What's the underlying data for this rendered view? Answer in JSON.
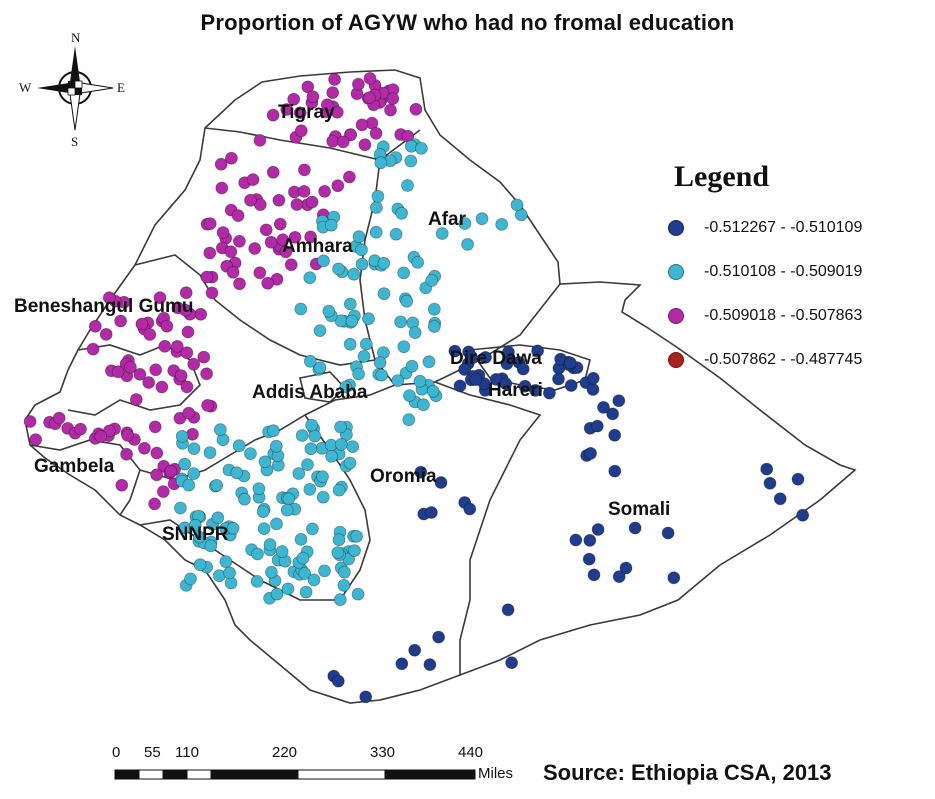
{
  "title": "Proportion of AGYW who had no fromal education",
  "legend": {
    "title": "Legend",
    "classes": [
      {
        "label": "-0.512267 - -0.510109",
        "color": "#1f3d8c"
      },
      {
        "label": "-0.510108 - -0.509019",
        "color": "#3eb6d1"
      },
      {
        "label": "-0.509018 - -0.507863",
        "color": "#b22aa6"
      },
      {
        "label": "-0.507862 - -0.487745",
        "color": "#a8221f"
      }
    ]
  },
  "compass": {
    "north": "N",
    "south": "S",
    "east": "E",
    "west": "W"
  },
  "regions": [
    "Tigray",
    "Afar",
    "Amhara",
    "Beneshangul Gumu",
    "Dire Dawa",
    "Hareri",
    "Addis Ababa",
    "Gambela",
    "Oromia",
    "Somali",
    "SNNPR"
  ],
  "scale_bar": {
    "ticks": [
      "0",
      "55",
      "110",
      "220",
      "330",
      "440"
    ],
    "unit": "Miles"
  },
  "source": "Source: Ethiopia CSA, 2013",
  "colors": {
    "boundary": "#3a3a3a",
    "background": "#ffffff"
  }
}
